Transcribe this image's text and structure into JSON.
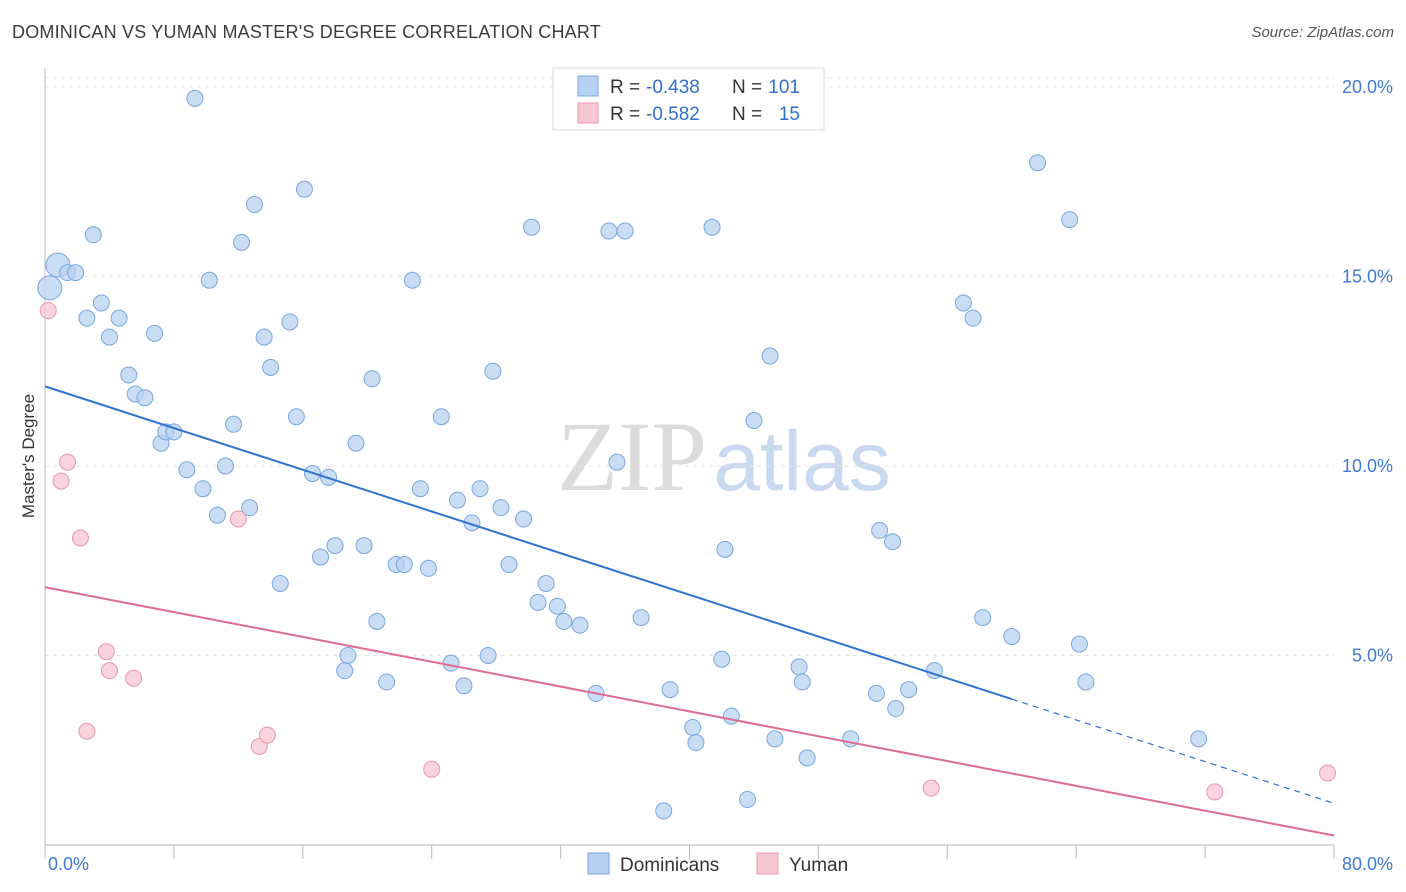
{
  "title": "DOMINICAN VS YUMAN MASTER'S DEGREE CORRELATION CHART",
  "source": "Source: ZipAtlas.com",
  "colors": {
    "blue_fill": "#b7d1f2",
    "blue_stroke": "#7aa7df",
    "blue_line": "#2f72d0",
    "pink_fill": "#f7c6d3",
    "pink_stroke": "#e897ae",
    "pink_line": "#e06b93",
    "tick_text": "#3f7ad6",
    "grid": "#e4e4e4"
  },
  "chart_data": {
    "type": "scatter",
    "title": "DOMINICAN VS YUMAN MASTER'S DEGREE CORRELATION CHART",
    "xlabel": "",
    "ylabel": "Master's Degree",
    "xlim": [
      0,
      80
    ],
    "ylim": [
      0,
      20.5
    ],
    "x_tick_labels": [
      "0.0%",
      "80.0%"
    ],
    "y_ticks": [
      5,
      10,
      15,
      20
    ],
    "y_tick_labels": [
      "5.0%",
      "10.0%",
      "15.0%",
      "20.0%"
    ],
    "watermark": {
      "part1": "ZIP",
      "part2": "atlas"
    },
    "legend": [
      {
        "r_label": "R =",
        "r_value": "-0.438",
        "n_label": "N =",
        "n_value": "101"
      },
      {
        "r_label": "R =",
        "r_value": "-0.582",
        "n_label": "N =",
        "n_value": "15"
      }
    ],
    "series": [
      {
        "name": "Dominicans",
        "trend": {
          "x0": 0,
          "y0": 12.1,
          "x1": 60,
          "y1": 3.85,
          "dash_to_x": 80,
          "dash_to_y": 1.1
        },
        "points": [
          [
            0.8,
            15.3
          ],
          [
            1.4,
            15.1
          ],
          [
            1.9,
            15.1
          ],
          [
            2.6,
            13.9
          ],
          [
            3.0,
            16.1
          ],
          [
            3.5,
            14.3
          ],
          [
            4.0,
            13.4
          ],
          [
            4.6,
            13.9
          ],
          [
            5.2,
            12.4
          ],
          [
            5.6,
            11.9
          ],
          [
            6.2,
            11.8
          ],
          [
            6.8,
            13.5
          ],
          [
            7.2,
            10.6
          ],
          [
            7.5,
            10.9
          ],
          [
            8.0,
            10.9
          ],
          [
            8.8,
            9.9
          ],
          [
            9.3,
            19.7
          ],
          [
            9.8,
            9.4
          ],
          [
            10.2,
            14.9
          ],
          [
            10.7,
            8.7
          ],
          [
            11.2,
            10.0
          ],
          [
            11.7,
            11.1
          ],
          [
            12.2,
            15.9
          ],
          [
            12.7,
            8.9
          ],
          [
            13.0,
            16.9
          ],
          [
            13.6,
            13.4
          ],
          [
            14.0,
            12.6
          ],
          [
            14.6,
            6.9
          ],
          [
            15.2,
            13.8
          ],
          [
            15.6,
            11.3
          ],
          [
            16.1,
            17.3
          ],
          [
            16.6,
            9.8
          ],
          [
            17.1,
            7.6
          ],
          [
            17.6,
            9.7
          ],
          [
            18.0,
            7.9
          ],
          [
            18.6,
            4.6
          ],
          [
            18.8,
            5.0
          ],
          [
            19.3,
            10.6
          ],
          [
            19.8,
            7.9
          ],
          [
            20.3,
            12.3
          ],
          [
            20.6,
            5.9
          ],
          [
            21.2,
            4.3
          ],
          [
            21.8,
            7.4
          ],
          [
            22.3,
            7.4
          ],
          [
            22.8,
            14.9
          ],
          [
            23.3,
            9.4
          ],
          [
            23.8,
            7.3
          ],
          [
            24.6,
            11.3
          ],
          [
            25.2,
            4.8
          ],
          [
            25.6,
            9.1
          ],
          [
            26.0,
            4.2
          ],
          [
            26.5,
            8.5
          ],
          [
            27.0,
            9.4
          ],
          [
            27.5,
            5.0
          ],
          [
            27.8,
            12.5
          ],
          [
            28.3,
            8.9
          ],
          [
            28.8,
            7.4
          ],
          [
            29.7,
            8.6
          ],
          [
            30.2,
            16.3
          ],
          [
            30.6,
            6.4
          ],
          [
            31.1,
            6.9
          ],
          [
            31.8,
            6.3
          ],
          [
            32.2,
            5.9
          ],
          [
            33.2,
            5.8
          ],
          [
            34.2,
            4.0
          ],
          [
            35.0,
            16.2
          ],
          [
            35.5,
            10.1
          ],
          [
            36.0,
            16.2
          ],
          [
            37.0,
            6.0
          ],
          [
            38.4,
            0.9
          ],
          [
            38.8,
            4.1
          ],
          [
            40.2,
            3.1
          ],
          [
            40.4,
            2.7
          ],
          [
            41.4,
            16.3
          ],
          [
            42.0,
            4.9
          ],
          [
            42.2,
            7.8
          ],
          [
            42.6,
            3.4
          ],
          [
            43.6,
            1.2
          ],
          [
            44.0,
            11.2
          ],
          [
            45.0,
            12.9
          ],
          [
            45.3,
            2.8
          ],
          [
            46.8,
            4.7
          ],
          [
            47.0,
            4.3
          ],
          [
            47.3,
            2.3
          ],
          [
            50.0,
            2.8
          ],
          [
            51.6,
            4.0
          ],
          [
            51.8,
            8.3
          ],
          [
            52.6,
            8.0
          ],
          [
            52.8,
            3.6
          ],
          [
            53.6,
            4.1
          ],
          [
            55.2,
            4.6
          ],
          [
            57.0,
            14.3
          ],
          [
            57.6,
            13.9
          ],
          [
            58.2,
            6.0
          ],
          [
            60.0,
            5.5
          ],
          [
            61.6,
            18.0
          ],
          [
            63.6,
            16.5
          ],
          [
            64.2,
            5.3
          ],
          [
            64.6,
            4.3
          ],
          [
            71.6,
            2.8
          ],
          [
            0.3,
            14.7
          ]
        ]
      },
      {
        "name": "Yuman",
        "trend": {
          "x0": 0,
          "y0": 6.8,
          "x1": 80,
          "y1": 0.25
        },
        "points": [
          [
            0.2,
            14.1
          ],
          [
            1.0,
            9.6
          ],
          [
            1.4,
            10.1
          ],
          [
            2.2,
            8.1
          ],
          [
            2.6,
            3.0
          ],
          [
            3.8,
            5.1
          ],
          [
            4.0,
            4.6
          ],
          [
            5.5,
            4.4
          ],
          [
            12.0,
            8.6
          ],
          [
            13.3,
            2.6
          ],
          [
            13.8,
            2.9
          ],
          [
            24.0,
            2.0
          ],
          [
            55.0,
            1.5
          ],
          [
            72.6,
            1.4
          ],
          [
            79.6,
            1.9
          ]
        ]
      }
    ]
  }
}
